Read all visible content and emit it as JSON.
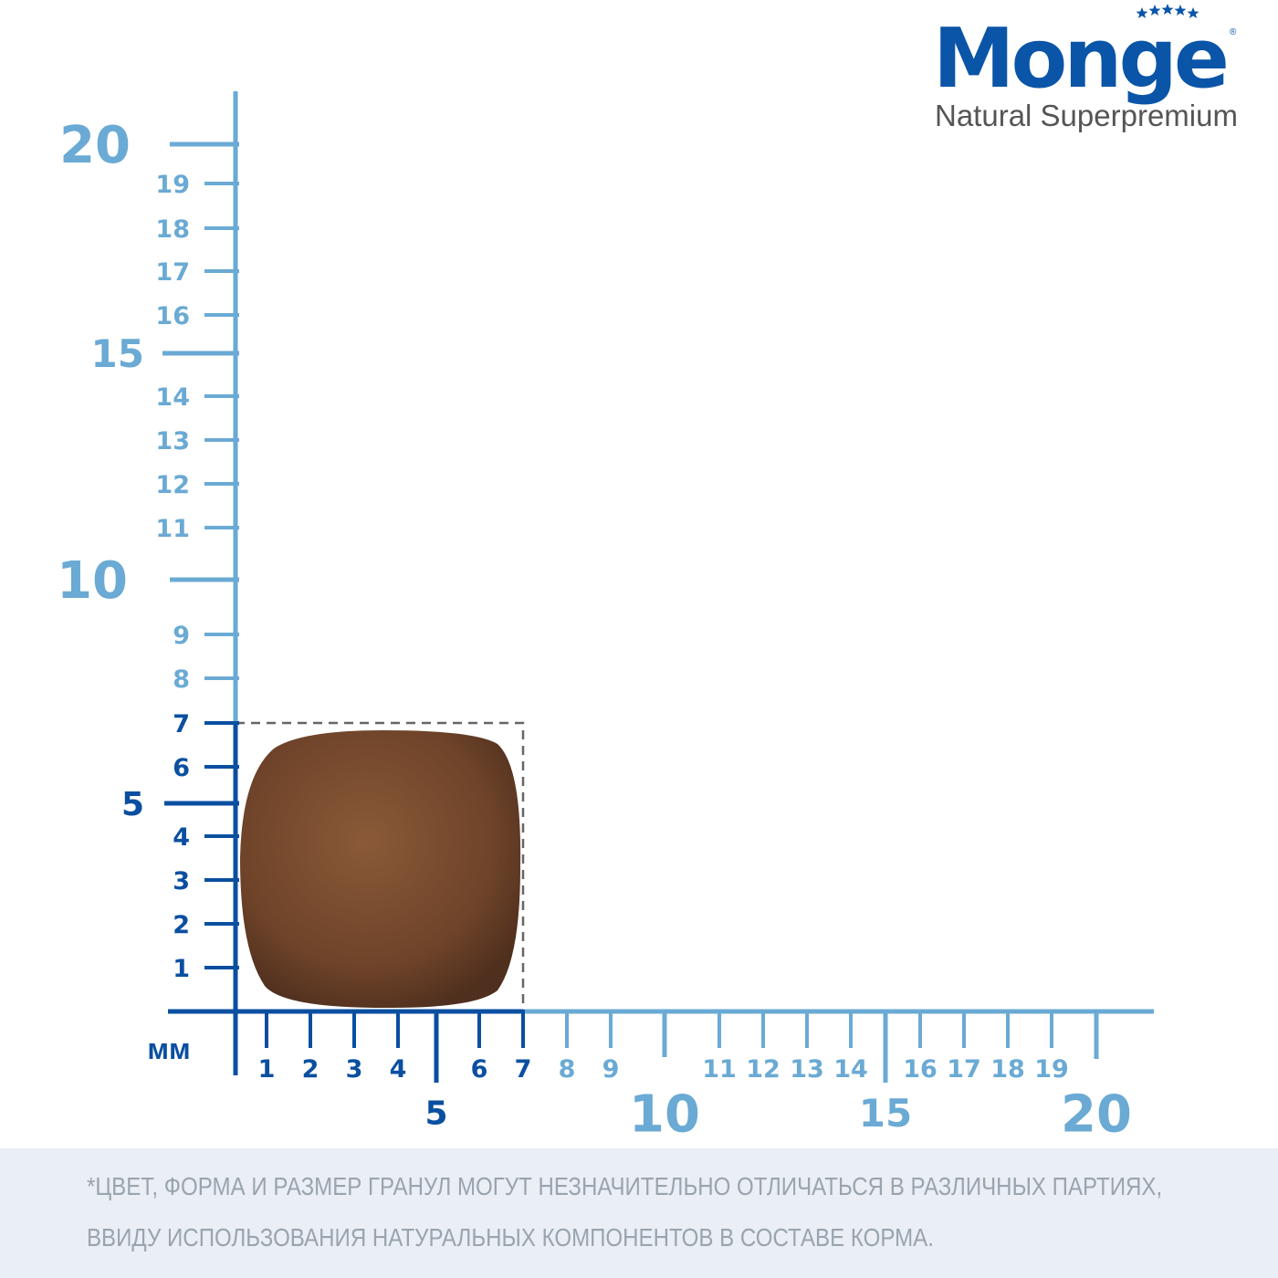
{
  "brand": {
    "name": "Monge",
    "tagline": "Natural Superpremium"
  },
  "ruler": {
    "unit_label": "мм",
    "range_mm": [
      0,
      20
    ],
    "vertical_labels": [
      "1",
      "2",
      "3",
      "4",
      "5",
      "6",
      "7",
      "8",
      "9",
      "10",
      "11",
      "12",
      "13",
      "14",
      "15",
      "16",
      "17",
      "18",
      "19",
      "20"
    ],
    "horizontal_labels": [
      "1",
      "2",
      "3",
      "4",
      "5",
      "6",
      "7",
      "8",
      "9",
      "10",
      "11",
      "12",
      "13",
      "14",
      "15",
      "16",
      "17",
      "18",
      "19",
      "20"
    ],
    "kibble_size_mm": {
      "width": 7,
      "height": 7
    },
    "colors": {
      "measured": "#0a4fa0",
      "scale": "#6aaad4",
      "kibble": "#7a4a2e"
    }
  },
  "footer": {
    "note_line1": "*ЦВЕТ, ФОРМА И РАЗМЕР ГРАНУЛ МОГУТ НЕЗНАЧИТЕЛЬНО ОТЛИЧАТЬСЯ В РАЗЛИЧНЫХ ПАРТИЯХ,",
    "note_line2": "ВВИДУ ИСПОЛЬЗОВАНИЯ НАТУРАЛЬНЫХ КОМПОНЕНТОВ В СОСТАВЕ КОРМА."
  }
}
